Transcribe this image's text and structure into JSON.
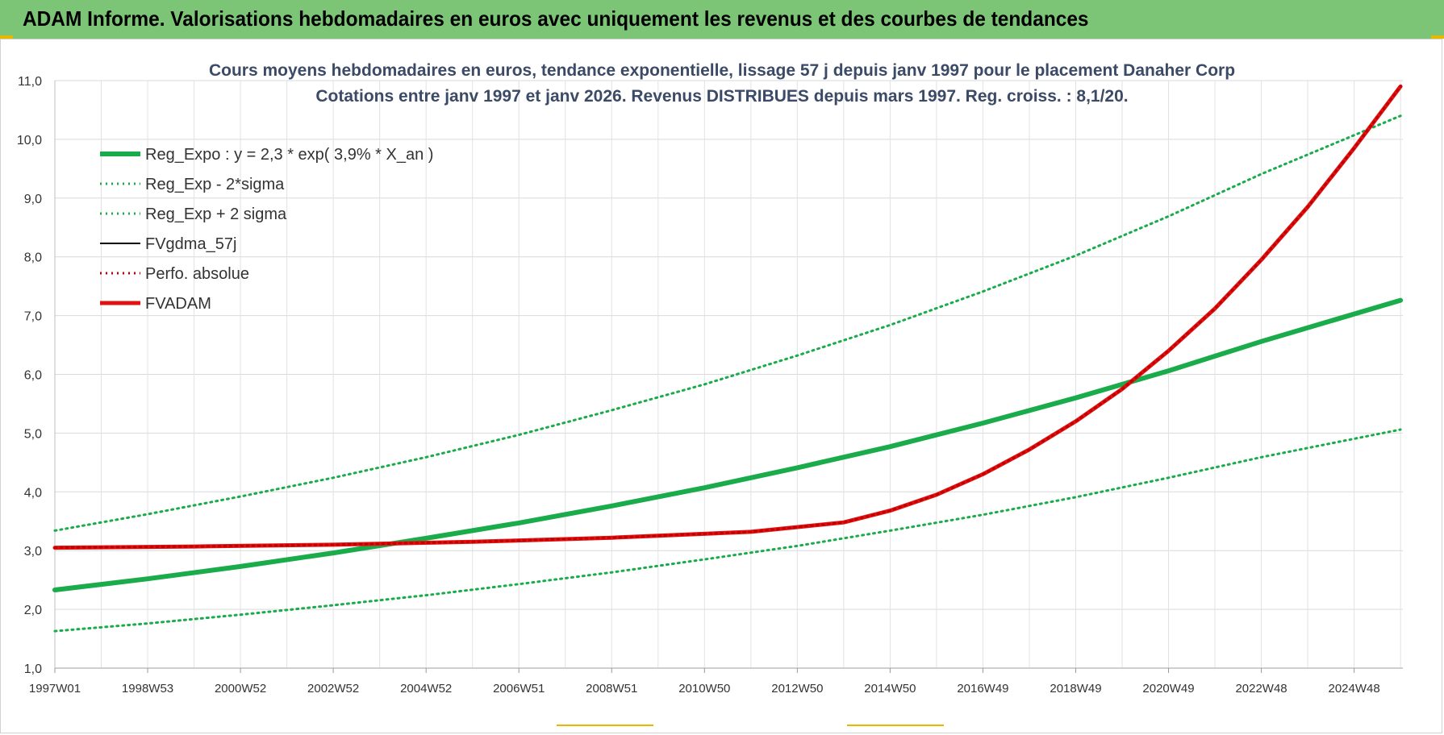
{
  "header": {
    "banner": "ADAM Informe. Valorisations hebdomadaires en euros avec uniquement les revenus et des courbes de tendances"
  },
  "chart_data": {
    "type": "line",
    "title": "Cours moyens hebdomadaires en euros, tendance exponentielle, lissage 57 j depuis janv 1997  pour le placement Danaher Corp",
    "subtitle": "Cotations entre janv 1997 et janv 2026. Revenus DISTRIBUES depuis mars 1997.  Reg. croiss. : 8,1/20.",
    "xlabel": "",
    "ylabel": "",
    "x_ticks": [
      "1997W01",
      "1998W53",
      "2000W52",
      "2002W52",
      "2004W52",
      "2006W51",
      "2008W51",
      "2010W50",
      "2012W50",
      "2014W50",
      "2016W49",
      "2018W49",
      "2020W49",
      "2022W48",
      "2024W48"
    ],
    "x_range": [
      1997.0,
      2026.05
    ],
    "y_ticks": [
      "1,0",
      "2,0",
      "3,0",
      "4,0",
      "5,0",
      "6,0",
      "7,0",
      "8,0",
      "9,0",
      "10,0",
      "11,0"
    ],
    "ylim": [
      1.0,
      11.0
    ],
    "grid": true,
    "legend_position": "top-left",
    "series": [
      {
        "name": "Reg_Expo : y = 2,3 * exp( 3,9% *  X_an )",
        "color": "#1aab4a",
        "style": "solid-thick",
        "x": [
          1997,
          1999,
          2001,
          2003,
          2005,
          2007,
          2009,
          2011,
          2013,
          2015,
          2017,
          2019,
          2021,
          2023,
          2026
        ],
        "values": [
          2.33,
          2.52,
          2.73,
          2.96,
          3.21,
          3.47,
          3.76,
          4.07,
          4.41,
          4.77,
          5.17,
          5.6,
          6.06,
          6.56,
          7.26
        ]
      },
      {
        "name": "Reg_Exp - 2*sigma",
        "color": "#1aab4a",
        "style": "dotted",
        "x": [
          1997,
          1999,
          2001,
          2003,
          2005,
          2007,
          2009,
          2011,
          2013,
          2015,
          2017,
          2019,
          2021,
          2023,
          2026
        ],
        "values": [
          1.63,
          1.76,
          1.91,
          2.07,
          2.24,
          2.43,
          2.63,
          2.85,
          3.08,
          3.34,
          3.61,
          3.91,
          4.24,
          4.59,
          5.06
        ]
      },
      {
        "name": "Reg_Exp + 2 sigma",
        "color": "#1aab4a",
        "style": "dotted",
        "x": [
          1997,
          1999,
          2001,
          2003,
          2005,
          2007,
          2009,
          2011,
          2013,
          2015,
          2017,
          2019,
          2021,
          2023,
          2026
        ],
        "values": [
          3.34,
          3.62,
          3.92,
          4.24,
          4.59,
          4.97,
          5.39,
          5.83,
          6.32,
          6.84,
          7.41,
          8.02,
          8.69,
          9.41,
          10.4
        ]
      },
      {
        "name": "FVgdma_57j",
        "color": "#000000",
        "style": "solid-thin",
        "x": [
          1997,
          2000,
          2003,
          2006,
          2009,
          2012,
          2014,
          2015,
          2016,
          2017,
          2018,
          2019,
          2020,
          2021,
          2022,
          2023,
          2024,
          2025,
          2026
        ],
        "values": [
          3.05,
          3.07,
          3.1,
          3.15,
          3.22,
          3.32,
          3.48,
          3.68,
          3.95,
          4.3,
          4.72,
          5.2,
          5.75,
          6.4,
          7.12,
          7.95,
          8.85,
          9.85,
          10.9
        ]
      },
      {
        "name": "Perfo. absolue",
        "color": "#c00000",
        "style": "dotted",
        "x": [
          1997,
          2000,
          2003,
          2006,
          2009,
          2012,
          2014,
          2015,
          2016,
          2017,
          2018,
          2019,
          2020,
          2021,
          2022,
          2023,
          2024,
          2025,
          2026
        ],
        "values": [
          3.05,
          3.07,
          3.1,
          3.15,
          3.22,
          3.32,
          3.48,
          3.68,
          3.95,
          4.3,
          4.72,
          5.2,
          5.75,
          6.4,
          7.12,
          7.95,
          8.85,
          9.85,
          10.9
        ]
      },
      {
        "name": "FVADAM",
        "color": "#e31212",
        "style": "solid-thick",
        "x": [
          1997,
          2000,
          2003,
          2006,
          2009,
          2012,
          2014,
          2015,
          2016,
          2017,
          2018,
          2019,
          2020,
          2021,
          2022,
          2023,
          2024,
          2025,
          2026
        ],
        "values": [
          3.05,
          3.07,
          3.1,
          3.15,
          3.22,
          3.32,
          3.48,
          3.68,
          3.95,
          4.3,
          4.72,
          5.2,
          5.75,
          6.4,
          7.12,
          7.95,
          8.85,
          9.85,
          10.9
        ]
      }
    ]
  }
}
